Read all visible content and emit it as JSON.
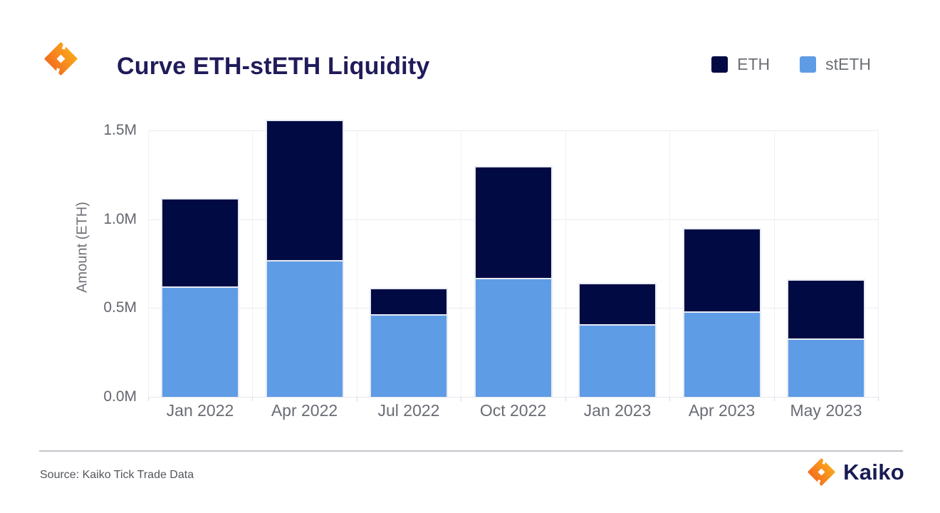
{
  "header": {
    "title": "Curve ETH-stETH Liquidity"
  },
  "icons": {
    "app_logo": "kaiko-diamond-icon",
    "brand_logo": "kaiko-diamond-icon"
  },
  "chart_data": {
    "type": "bar",
    "stacked": true,
    "title": "Curve ETH-stETH Liquidity",
    "categories": [
      "Jan 2022",
      "Apr 2022",
      "Jul 2022",
      "Oct 2022",
      "Jan 2023",
      "Apr 2023",
      "May 2023"
    ],
    "series": [
      {
        "name": "ETH",
        "color": "#010a43",
        "values": [
          500000,
          790000,
          150000,
          630000,
          230000,
          470000,
          330000
        ]
      },
      {
        "name": "stETH",
        "color": "#5f9ce6",
        "values": [
          620000,
          770000,
          465000,
          670000,
          410000,
          480000,
          330000
        ]
      }
    ],
    "stack_bottom_to_top": [
      "stETH",
      "ETH"
    ],
    "xlabel": "",
    "ylabel": "Amount (ETH)",
    "yticks": [
      {
        "label": "0.0M",
        "value": 0
      },
      {
        "label": "0.5M",
        "value": 500000
      },
      {
        "label": "1.0M",
        "value": 1000000
      },
      {
        "label": "1.5M",
        "value": 1500000
      }
    ],
    "ylim": [
      0,
      1600000
    ],
    "grid": true,
    "legend_position": "top-right"
  },
  "footer": {
    "source": "Source: Kaiko Tick Trade Data",
    "brand": "Kaiko"
  },
  "colors": {
    "eth": "#010a43",
    "steth": "#5f9ce6",
    "title_navy": "#201c5a",
    "brand_navy": "#191b54",
    "gridline": "#ececf2",
    "axis_text": "#696c73",
    "logo_orange_dark": "#f0611d",
    "logo_orange_mid": "#f68b1e",
    "logo_orange_light": "#fbb018"
  }
}
